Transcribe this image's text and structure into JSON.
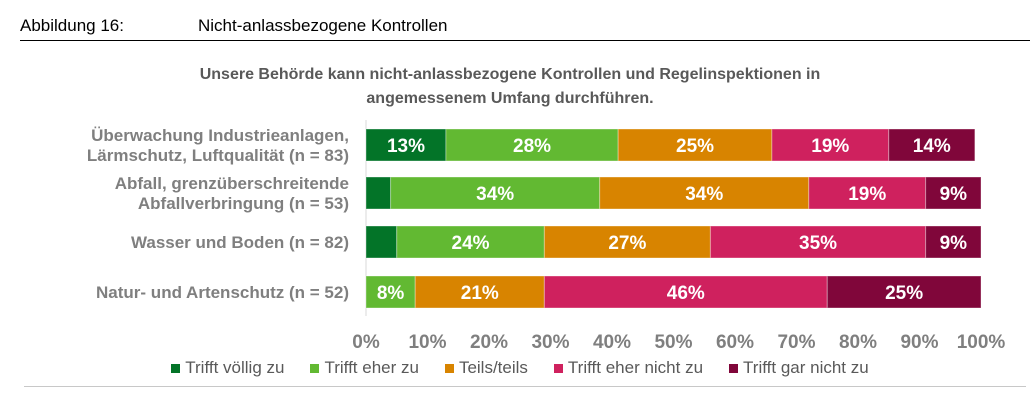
{
  "figure": {
    "number": "Abbildung 16:",
    "title": "Nicht-anlassbezogene Kontrollen"
  },
  "chart_data": {
    "type": "bar",
    "orientation": "horizontal",
    "stacked": true,
    "title": "Unsere Behörde kann nicht-anlassbezogene Kontrollen und Regelinspektionen in angemessenem Umfang durchführen.",
    "title_lines": [
      "Unsere Behörde kann nicht-anlassbezogene Kontrollen und Regelinspektionen in",
      "angemessenem Umfang durchführen."
    ],
    "xlabel": "",
    "ylabel": "",
    "xlim": [
      0,
      100
    ],
    "x_ticks": [
      "0%",
      "10%",
      "20%",
      "30%",
      "40%",
      "50%",
      "60%",
      "70%",
      "80%",
      "90%",
      "100%"
    ],
    "grid": false,
    "legend_position": "bottom",
    "categories": [
      {
        "lines": [
          "Überwachung Industrieanlagen,",
          "Lärmschutz, Luftqualität (n = 83)"
        ]
      },
      {
        "lines": [
          "Abfall, grenzüberschreitende",
          "Abfallverbringung (n = 53)"
        ]
      },
      {
        "lines": [
          "Wasser und Boden (n = 82)"
        ]
      },
      {
        "lines": [
          "Natur- und Artenschutz (n = 52)"
        ]
      }
    ],
    "series": [
      {
        "name": "Trifft völlig zu",
        "color": "#037428",
        "values": [
          13,
          4,
          5,
          0
        ],
        "labels": [
          "13%",
          "",
          "",
          ""
        ]
      },
      {
        "name": "Trifft eher zu",
        "color": "#62b932",
        "values": [
          28,
          34,
          24,
          8
        ],
        "labels": [
          "28%",
          "34%",
          "24%",
          "8%"
        ]
      },
      {
        "name": "Teils/teils",
        "color": "#d88400",
        "values": [
          25,
          34,
          27,
          21
        ],
        "labels": [
          "25%",
          "34%",
          "27%",
          "21%"
        ]
      },
      {
        "name": "Trifft eher nicht zu",
        "color": "#cf215e",
        "values": [
          19,
          19,
          35,
          46
        ],
        "labels": [
          "19%",
          "19%",
          "35%",
          "46%"
        ]
      },
      {
        "name": "Trifft gar nicht zu",
        "color": "#80063a",
        "values": [
          14,
          9,
          9,
          25
        ],
        "labels": [
          "14%",
          "9%",
          "9%",
          "25%"
        ]
      }
    ]
  }
}
